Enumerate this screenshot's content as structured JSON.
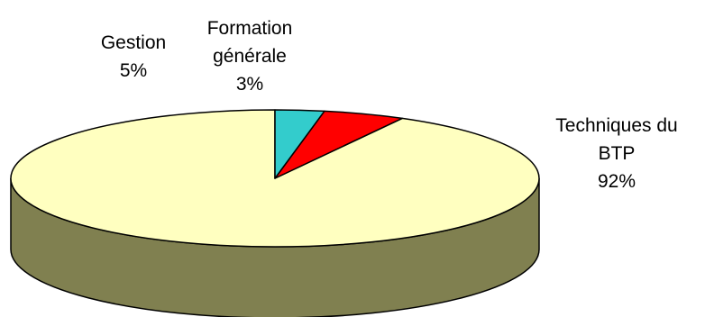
{
  "chart_data": {
    "type": "pie",
    "three_d": true,
    "slices": [
      {
        "label": "Techniques du BTP",
        "label_lines": [
          "Techniques du",
          "BTP"
        ],
        "value": 92,
        "value_label": "92%",
        "color": "#FFFFC0",
        "side_color": "#808050"
      },
      {
        "label": "Gestion",
        "label_lines": [
          "Gestion"
        ],
        "value": 5,
        "value_label": "5%",
        "color": "#FF0000",
        "side_color": "#800000"
      },
      {
        "label": "Formation générale",
        "label_lines": [
          "Formation",
          "générale"
        ],
        "value": 3,
        "value_label": "3%",
        "color": "#33CCCC",
        "side_color": "#1A6666"
      }
    ],
    "edge_color": "#000000",
    "legend": "none"
  }
}
